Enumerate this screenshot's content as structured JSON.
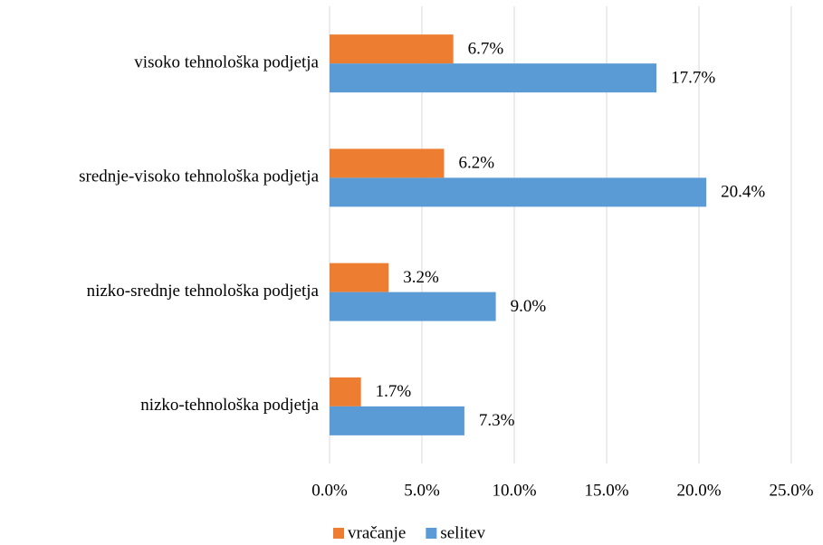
{
  "chart_data": {
    "type": "hbar",
    "categories": [
      "visoko tehnološka podjetja",
      "srednje-visoko tehnološka podjetja",
      "nizko-srednje tehnološka podjetja",
      "nizko-tehnološka podjetja"
    ],
    "series": [
      {
        "name": "vračanje",
        "color": "#ED7D31",
        "values": [
          6.7,
          6.2,
          3.2,
          1.7
        ],
        "value_labels": [
          "6.7%",
          "6.2%",
          "3.2%",
          "1.7%"
        ]
      },
      {
        "name": "selitev",
        "color": "#5B9BD5",
        "values": [
          17.7,
          20.4,
          9.0,
          7.3
        ],
        "value_labels": [
          "17.7%",
          "20.4%",
          "9.0%",
          "7.3%"
        ]
      }
    ],
    "xlim": [
      0,
      25
    ],
    "xticks": [
      {
        "value": 0,
        "label": "0.0%"
      },
      {
        "value": 5,
        "label": "5.0%"
      },
      {
        "value": 10,
        "label": "10.0%"
      },
      {
        "value": 15,
        "label": "15.0%"
      },
      {
        "value": 20,
        "label": "20.0%"
      },
      {
        "value": 25,
        "label": "25.0%"
      }
    ],
    "grid": true,
    "legend": "bottom"
  }
}
